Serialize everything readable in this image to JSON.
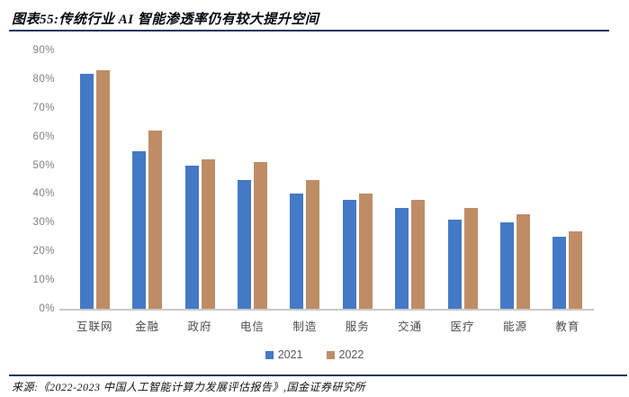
{
  "header": {
    "title": "图表55:传统行业 AI 智能渗透率仍有较大提升空间"
  },
  "chart_data": {
    "type": "bar",
    "title": "传统行业 AI 智能渗透率仍有较大提升空间",
    "categories": [
      "互联网",
      "金融",
      "政府",
      "电信",
      "制造",
      "服务",
      "交通",
      "医疗",
      "能源",
      "教育"
    ],
    "series": [
      {
        "name": "2021",
        "color": "#4479c6",
        "values": [
          82,
          55,
          50,
          45,
          40,
          38,
          35,
          31,
          30,
          25
        ]
      },
      {
        "name": "2022",
        "color": "#be8d66",
        "values": [
          83,
          62,
          52,
          51,
          45,
          40,
          38,
          35,
          33,
          27
        ]
      }
    ],
    "unit": "%",
    "ylim": [
      0,
      90
    ],
    "ytick_step": 10,
    "ytick_labels": [
      "90%",
      "80%",
      "70%",
      "60%",
      "50%",
      "40%",
      "30%",
      "20%",
      "10%",
      "0%"
    ],
    "grid": false,
    "legend_position": "bottom"
  },
  "legend": [
    {
      "label": "2021",
      "color": "#4479c6"
    },
    {
      "label": "2022",
      "color": "#be8d66"
    }
  ],
  "footer": {
    "source": "来源:《2022-2023 中国人工智能计算力发展评估报告》,国金证券研究所"
  },
  "colors": {
    "series_2021": "#4479c6",
    "series_2022": "#be8d66",
    "rule_navy": "#17375e",
    "axis_line": "#c9c9c9",
    "tick_text": "#7f7f7f",
    "category_text": "#4d4d4d"
  }
}
